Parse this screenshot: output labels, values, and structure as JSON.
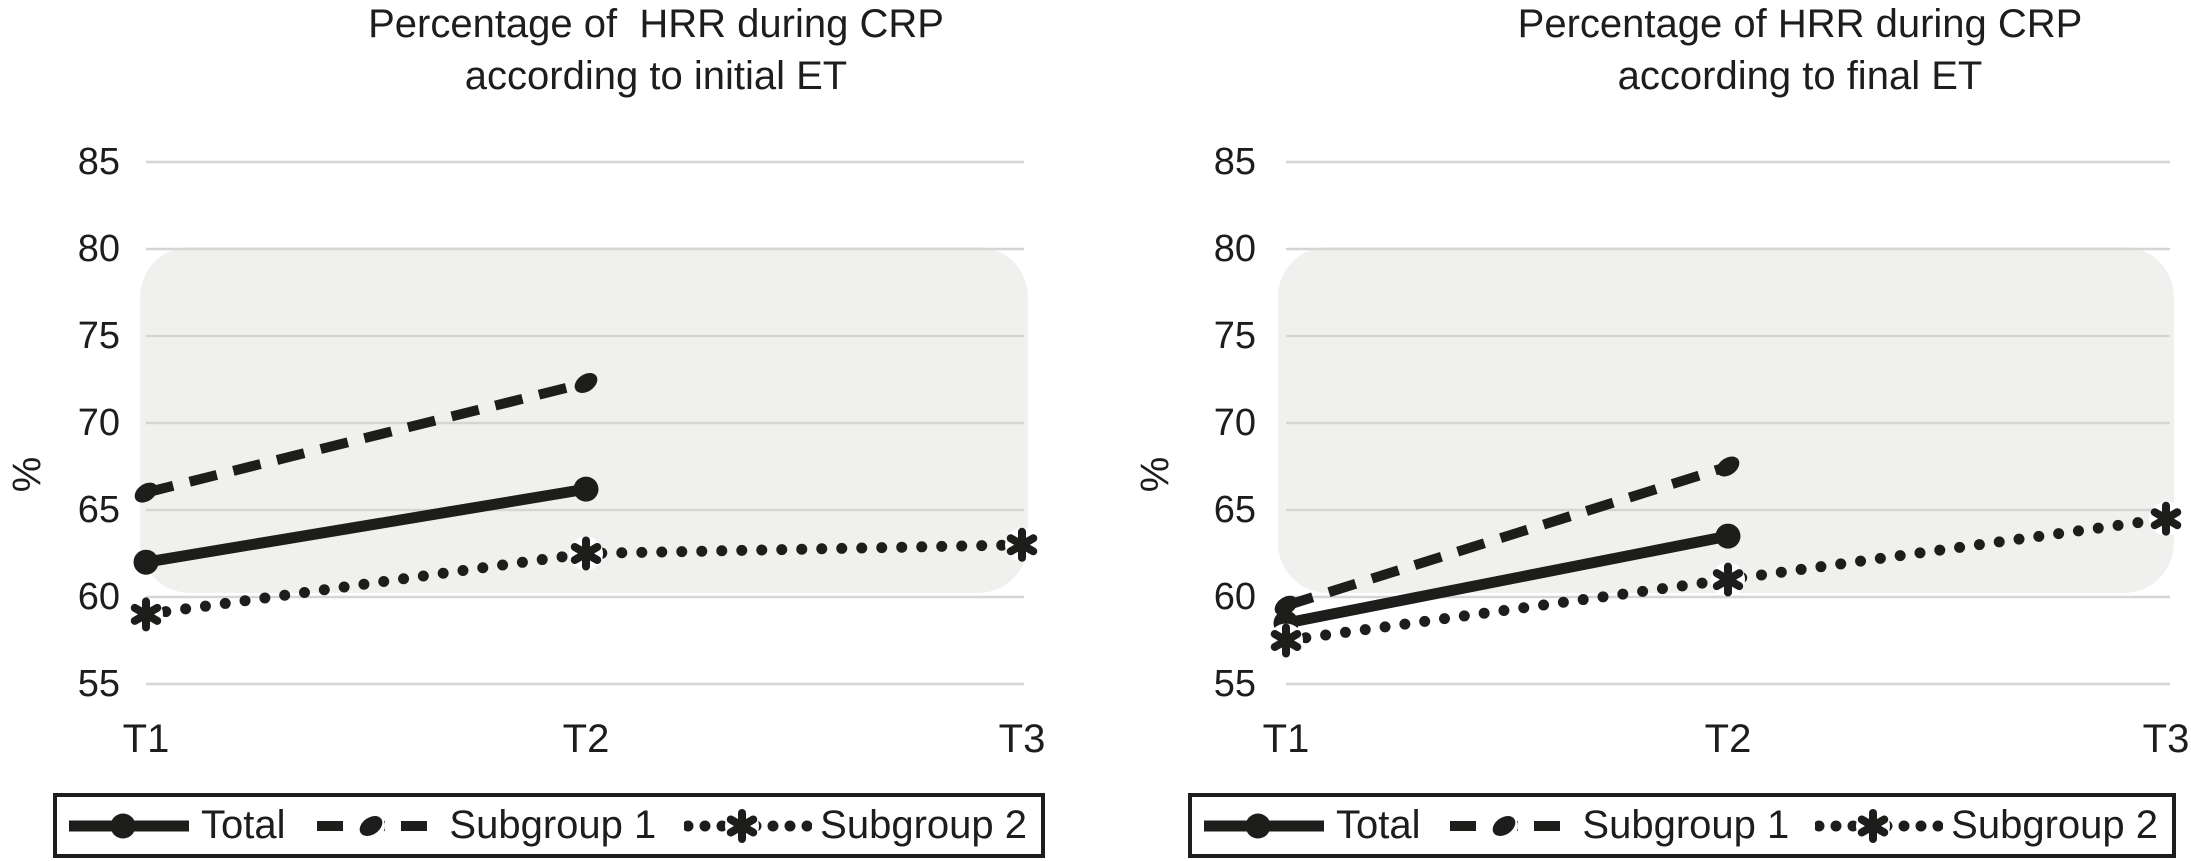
{
  "figure_title": "Percentage of HRR during CRP line charts",
  "chart_data": [
    {
      "type": "line",
      "title": "Percentage of  HRR during CRP\naccording to initial ET",
      "ylabel": "%",
      "categories": [
        "T1",
        "T2",
        "T3"
      ],
      "yticks": [
        85,
        80,
        75,
        70,
        65,
        60,
        55
      ],
      "ylim": [
        55,
        85
      ],
      "grid": true,
      "band": {
        "from": 60,
        "to": 80
      },
      "legend_position": "bottom",
      "series": [
        {
          "name": "Total",
          "style": "solid",
          "marker": "circle",
          "values": [
            62,
            66.2,
            null
          ]
        },
        {
          "name": "Subgroup 1",
          "style": "dashed",
          "marker": "oval",
          "values": [
            66,
            72.3,
            null
          ]
        },
        {
          "name": "Subgroup 2",
          "style": "dotted",
          "marker": "star",
          "values": [
            59,
            62.5,
            63
          ]
        }
      ]
    },
    {
      "type": "line",
      "title": "Percentage of HRR during CRP\naccording to final ET",
      "ylabel": "%",
      "categories": [
        "T1",
        "T2",
        "T3"
      ],
      "yticks": [
        85,
        80,
        75,
        70,
        65,
        60,
        55
      ],
      "ylim": [
        55,
        85
      ],
      "grid": true,
      "band": {
        "from": 60,
        "to": 80
      },
      "legend_position": "bottom",
      "series": [
        {
          "name": "Total",
          "style": "solid",
          "marker": "circle",
          "values": [
            58.5,
            63.5,
            null
          ]
        },
        {
          "name": "Subgroup 1",
          "style": "dashed",
          "marker": "oval",
          "values": [
            59.5,
            67.5,
            null
          ]
        },
        {
          "name": "Subgroup 2",
          "style": "dotted",
          "marker": "star",
          "values": [
            57.5,
            61,
            64.5
          ]
        }
      ]
    }
  ],
  "colors": {
    "line": "#1d1d1b",
    "text": "#1d1d1b",
    "grid": "#d5d5d3",
    "band": "#f0f0ee",
    "background": "#ffffff"
  }
}
